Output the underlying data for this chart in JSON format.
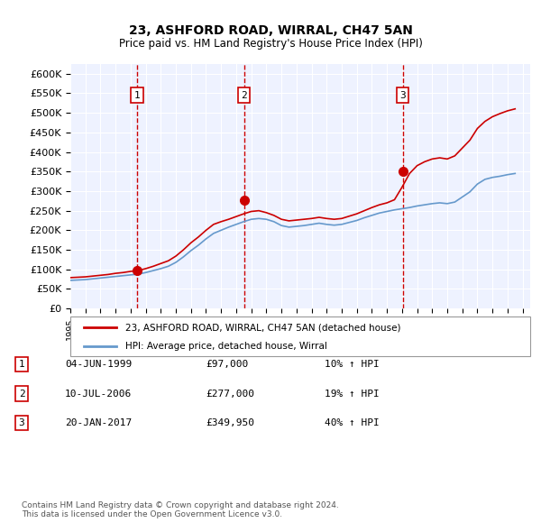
{
  "title": "23, ASHFORD ROAD, WIRRAL, CH47 5AN",
  "subtitle": "Price paid vs. HM Land Registry's House Price Index (HPI)",
  "ylabel": "",
  "ylim": [
    0,
    625000
  ],
  "yticks": [
    0,
    50000,
    100000,
    150000,
    200000,
    250000,
    300000,
    350000,
    400000,
    450000,
    500000,
    550000,
    600000
  ],
  "ytick_labels": [
    "£0",
    "£50K",
    "£100K",
    "£150K",
    "£200K",
    "£250K",
    "£300K",
    "£350K",
    "£400K",
    "£450K",
    "£500K",
    "£550K",
    "£600K"
  ],
  "xlim_start": 1995.0,
  "xlim_end": 2025.5,
  "background_color": "#eef2ff",
  "plot_bg_color": "#eef2ff",
  "grid_color": "#ffffff",
  "sale_color": "#cc0000",
  "hpi_color": "#6699cc",
  "vline_color": "#cc0000",
  "sale_dates": [
    1999.42,
    2006.52,
    2017.05
  ],
  "sale_prices": [
    97000,
    277000,
    349950
  ],
  "sale_labels": [
    "1",
    "2",
    "3"
  ],
  "legend_sale_label": "23, ASHFORD ROAD, WIRRAL, CH47 5AN (detached house)",
  "legend_hpi_label": "HPI: Average price, detached house, Wirral",
  "table_rows": [
    [
      "1",
      "04-JUN-1999",
      "£97,000",
      "10% ↑ HPI"
    ],
    [
      "2",
      "10-JUL-2006",
      "£277,000",
      "19% ↑ HPI"
    ],
    [
      "3",
      "20-JAN-2017",
      "£349,950",
      "40% ↑ HPI"
    ]
  ],
  "footer": "Contains HM Land Registry data © Crown copyright and database right 2024.\nThis data is licensed under the Open Government Licence v3.0.",
  "hpi_years": [
    1995.0,
    1995.5,
    1996.0,
    1996.5,
    1997.0,
    1997.5,
    1998.0,
    1998.5,
    1999.0,
    1999.5,
    2000.0,
    2000.5,
    2001.0,
    2001.5,
    2002.0,
    2002.5,
    2003.0,
    2003.5,
    2004.0,
    2004.5,
    2005.0,
    2005.5,
    2006.0,
    2006.5,
    2007.0,
    2007.5,
    2008.0,
    2008.5,
    2009.0,
    2009.5,
    2010.0,
    2010.5,
    2011.0,
    2011.5,
    2012.0,
    2012.5,
    2013.0,
    2013.5,
    2014.0,
    2014.5,
    2015.0,
    2015.5,
    2016.0,
    2016.5,
    2017.0,
    2017.5,
    2018.0,
    2018.5,
    2019.0,
    2019.5,
    2020.0,
    2020.5,
    2021.0,
    2021.5,
    2022.0,
    2022.5,
    2023.0,
    2023.5,
    2024.0,
    2024.5
  ],
  "hpi_values": [
    72000,
    73000,
    74000,
    76000,
    78000,
    80000,
    82000,
    84000,
    86000,
    88000,
    92000,
    97000,
    102000,
    108000,
    118000,
    132000,
    148000,
    162000,
    178000,
    192000,
    200000,
    208000,
    215000,
    222000,
    228000,
    230000,
    228000,
    222000,
    212000,
    208000,
    210000,
    212000,
    215000,
    218000,
    215000,
    213000,
    215000,
    220000,
    225000,
    232000,
    238000,
    244000,
    248000,
    252000,
    255000,
    258000,
    262000,
    265000,
    268000,
    270000,
    268000,
    272000,
    285000,
    298000,
    318000,
    330000,
    335000,
    338000,
    342000,
    345000
  ],
  "red_years": [
    1995.0,
    1995.5,
    1996.0,
    1996.5,
    1997.0,
    1997.5,
    1998.0,
    1998.5,
    1999.0,
    1999.5,
    2000.0,
    2000.5,
    2001.0,
    2001.5,
    2002.0,
    2002.5,
    2003.0,
    2003.5,
    2004.0,
    2004.5,
    2005.0,
    2005.5,
    2006.0,
    2006.5,
    2007.0,
    2007.5,
    2008.0,
    2008.5,
    2009.0,
    2009.5,
    2010.0,
    2010.5,
    2011.0,
    2011.5,
    2012.0,
    2012.5,
    2013.0,
    2013.5,
    2014.0,
    2014.5,
    2015.0,
    2015.5,
    2016.0,
    2016.5,
    2017.0,
    2017.5,
    2018.0,
    2018.5,
    2019.0,
    2019.5,
    2020.0,
    2020.5,
    2021.0,
    2021.5,
    2022.0,
    2022.5,
    2023.0,
    2023.5,
    2024.0,
    2024.5
  ],
  "red_values": [
    79000,
    80000,
    81000,
    83000,
    85000,
    87000,
    90000,
    92000,
    95000,
    97000,
    102000,
    108000,
    115000,
    122000,
    134000,
    150000,
    168000,
    183000,
    200000,
    215000,
    222000,
    228000,
    235000,
    242000,
    248000,
    250000,
    245000,
    238000,
    228000,
    224000,
    226000,
    228000,
    230000,
    233000,
    230000,
    228000,
    230000,
    236000,
    242000,
    250000,
    258000,
    265000,
    270000,
    278000,
    310000,
    345000,
    365000,
    375000,
    382000,
    385000,
    382000,
    390000,
    410000,
    430000,
    460000,
    478000,
    490000,
    498000,
    505000,
    510000
  ]
}
